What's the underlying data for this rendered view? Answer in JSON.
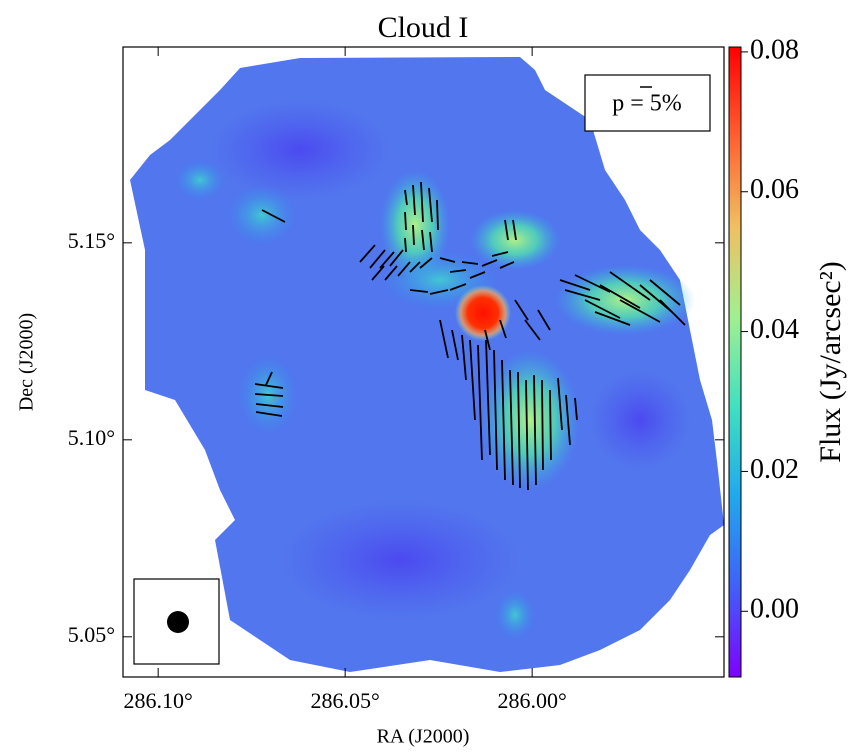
{
  "chart_data": {
    "type": "image",
    "title": "Cloud I",
    "xlabel": "RA (J2000)",
    "ylabel": "Dec (J2000)",
    "xlim": [
      286.1094,
      285.9487
    ],
    "xticks": [
      {
        "value": 286.1,
        "label": "286.10°"
      },
      {
        "value": 286.05,
        "label": "286.05°"
      },
      {
        "value": 286.0,
        "label": "286.00°"
      }
    ],
    "ylim": [
      5.0398,
      5.1997
    ],
    "yticks": [
      {
        "value": 5.05,
        "label": "5.05°"
      },
      {
        "value": 5.1,
        "label": "5.10°"
      },
      {
        "value": 5.15,
        "label": "5.15°"
      }
    ],
    "colorbar": {
      "label": "Flux (Jy/arcsec²)",
      "clim": [
        -0.0094,
        0.0807
      ],
      "ticks": [
        {
          "value": 0,
          "label": "0.00"
        },
        0.02,
        0.04,
        0.06,
        0.08
      ],
      "colormap": [
        "#7f00ff",
        "#4060f8",
        "#20a8ee",
        "#40e0c0",
        "#a0f090",
        "#f0c060",
        "#ff6030",
        "#ff0000"
      ]
    },
    "legend_text": "p = 5%"
  }
}
